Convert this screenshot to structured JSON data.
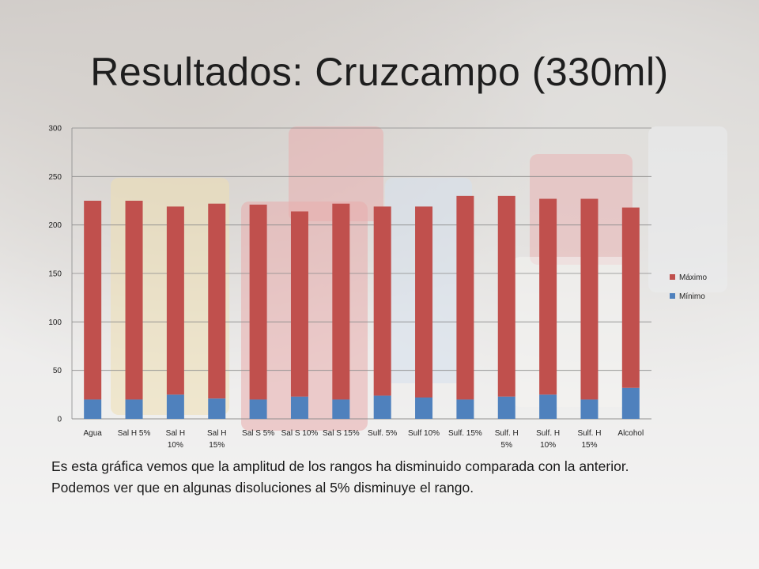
{
  "title": "Resultados: Cruzcampo (330ml)",
  "caption": "Es esta gráfica vemos que la amplitud de los rangos ha disminuido comparada con la anterior. Podemos ver que en algunas disoluciones al 5% disminuye el rango.",
  "chart_data": {
    "type": "bar",
    "stacked": true,
    "categories": [
      [
        "Agua"
      ],
      [
        "Sal H 5%"
      ],
      [
        "Sal H",
        "10%"
      ],
      [
        "Sal H",
        "15%"
      ],
      [
        "Sal S 5%"
      ],
      [
        "Sal S 10%"
      ],
      [
        "Sal S 15%"
      ],
      [
        "Sulf. 5%"
      ],
      [
        "Sulf 10%"
      ],
      [
        "Sulf. 15%"
      ],
      [
        "Sulf. H",
        "5%"
      ],
      [
        "Sulf. H",
        "10%"
      ],
      [
        "Sulf. H",
        "15%"
      ],
      [
        "Alcohol"
      ]
    ],
    "series": [
      {
        "name": "Mínimo",
        "color": "#4f81bd",
        "values": [
          20,
          20,
          25,
          21,
          20,
          23,
          20,
          24,
          22,
          20,
          23,
          25,
          20,
          32
        ]
      },
      {
        "name": "Máximo",
        "color": "#c0504d",
        "values": [
          205,
          205,
          194,
          201,
          201,
          191,
          202,
          195,
          197,
          210,
          207,
          202,
          207,
          186
        ]
      }
    ],
    "ylim": [
      0,
      300
    ],
    "yticks": [
      0,
      50,
      100,
      150,
      200,
      250,
      300
    ],
    "grid": true,
    "legend_position": "right"
  }
}
